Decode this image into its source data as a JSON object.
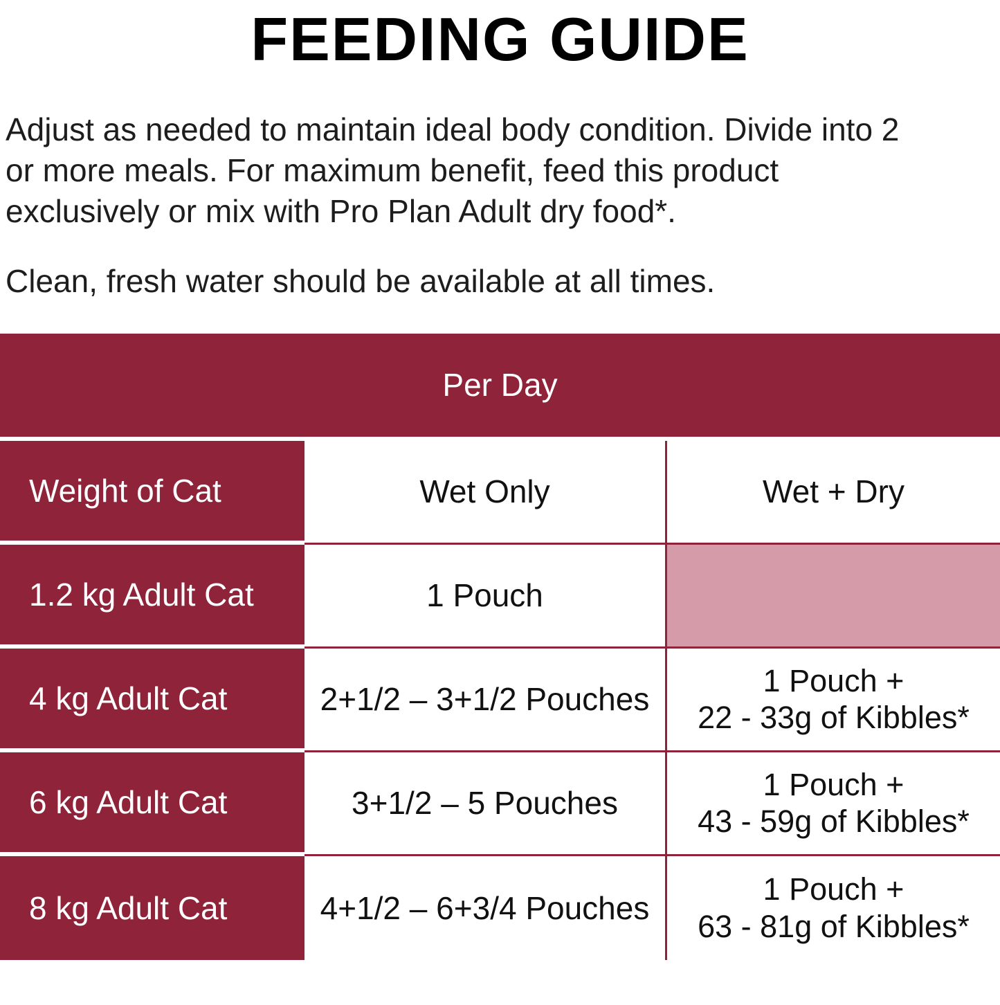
{
  "title": "FEEDING GUIDE",
  "intro": {
    "paragraph1": "Adjust as needed to maintain ideal body condition. Divide into 2 or more meals. For maximum benefit, feed this product exclusively or mix with Pro Plan Adult dry food*.",
    "paragraph2": "Clean, fresh water should be available at all times."
  },
  "table": {
    "banner": "Per Day",
    "columns": [
      "Weight of Cat",
      "Wet Only",
      "Wet + Dry"
    ],
    "rows": [
      {
        "weight": "1.2 kg Adult Cat",
        "wet_only": "1 Pouch",
        "wet_dry_line1": "",
        "wet_dry_line2": ""
      },
      {
        "weight": "4 kg Adult Cat",
        "wet_only": "2+1/2 – 3+1/2 Pouches",
        "wet_dry_line1": "1 Pouch +",
        "wet_dry_line2": "22 - 33g of Kibbles*"
      },
      {
        "weight": "6 kg Adult Cat",
        "wet_only": "3+1/2 – 5 Pouches",
        "wet_dry_line1": "1 Pouch +",
        "wet_dry_line2": "43 - 59g of Kibbles*"
      },
      {
        "weight": "8 kg Adult Cat",
        "wet_only": "4+1/2 – 6+3/4 Pouches",
        "wet_dry_line1": "1 Pouch +",
        "wet_dry_line2": "63 - 81g of Kibbles*"
      }
    ]
  },
  "colors": {
    "maroon": "#8E2339",
    "pink_empty_cell": "#D69BA8"
  }
}
